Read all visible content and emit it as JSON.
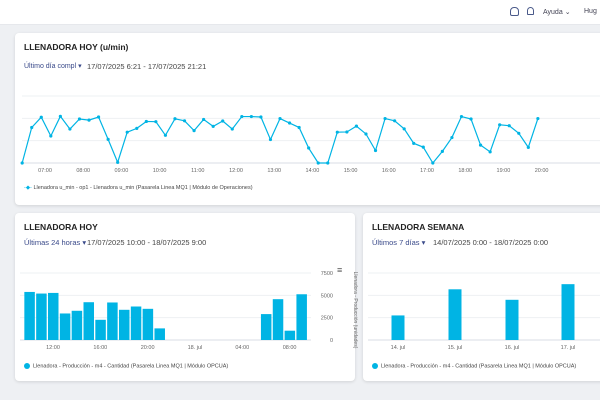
{
  "header": {
    "user": "Hug",
    "help_label": "Ayuda",
    "icons": [
      "robot-icon",
      "bell-icon"
    ]
  },
  "colors": {
    "series": "#00b4e4",
    "range": "#3a4a8a"
  },
  "card1": {
    "title": "LLENADORA HOY (u/min)",
    "range": "Último día compl",
    "dates": "17/07/2025 6:21 - 17/07/2025 21:21",
    "legend": "Llenadora u_min - op1 - Llenadora u_min (Pasarela Linea MQ1 | Módulo de Operaciones)"
  },
  "card2": {
    "title": "LLENADORA HOY",
    "range": "Últimas 24 horas",
    "dates": "17/07/2025 10:00 - 18/07/2025 9:00",
    "legend": "Llenadora - Producción - m4 - Cantidad (Pasarela Linea MQ1 | Módulo OPCUA)",
    "ylabel": "Llenadora - Producción (unidades)"
  },
  "card3": {
    "title": "LLENADORA SEMANA",
    "range": "Últimos 7 días",
    "dates": "14/07/2025 0:00 - 18/07/2025 0:00",
    "legend": "Llenadora - Producción - m4 - Cantidad (Pasarela Linea MQ1 | Módulo OPCUA)"
  },
  "chart_data": [
    {
      "type": "line",
      "x_start": "06:21",
      "x_step_minutes": 15,
      "xticks": [
        "07:00",
        "08:00",
        "09:00",
        "10:00",
        "11:00",
        "12:00",
        "13:00",
        "14:00",
        "15:00",
        "16:00",
        "17:00",
        "18:00",
        "19:00",
        "20:00"
      ],
      "ylim": [
        0,
        3
      ],
      "grid": true,
      "values": [
        0,
        1.59,
        2.05,
        1.21,
        2.09,
        1.52,
        1.97,
        1.92,
        2.06,
        1.06,
        0.03,
        1.38,
        1.55,
        1.86,
        1.85,
        1.24,
        1.98,
        1.89,
        1.45,
        1.95,
        1.64,
        1.88,
        1.52,
        2.08,
        2.08,
        2.06,
        1.05,
        1.99,
        1.79,
        1.59,
        0.67,
        0,
        0,
        1.38,
        1.39,
        1.65,
        1.3,
        0.56,
        1.99,
        1.89,
        1.53,
        0.88,
        0.71,
        0,
        0.52,
        1.14,
        2.08,
        1.97,
        0.8,
        0.5,
        1.71,
        1.67,
        1.33,
        0.7,
        1.99
      ]
    },
    {
      "type": "bar",
      "xticks": [
        "12:00",
        "16:00",
        "20:00",
        "18. jul",
        "04:00",
        "08:00"
      ],
      "yticks": [
        0,
        2500,
        5000,
        7500
      ],
      "ylim": [
        0,
        7500
      ],
      "grid": true,
      "categories": [
        "10:00",
        "11:00",
        "12:00",
        "13:00",
        "14:00",
        "15:00",
        "16:00",
        "17:00",
        "18:00",
        "19:00",
        "20:00",
        "21:00",
        "06:00",
        "07:00",
        "08:00",
        "09:00"
      ],
      "values": [
        5380,
        5200,
        5270,
        2970,
        3270,
        4230,
        2260,
        4200,
        3380,
        3750,
        3490,
        1300,
        2900,
        4570,
        1040,
        5120
      ]
    },
    {
      "type": "bar",
      "categories": [
        "14. jul",
        "15. jul",
        "16. jul",
        "17. jul"
      ],
      "ylim": [
        0,
        3
      ],
      "grid": true,
      "values": [
        1.1,
        2.27,
        1.8,
        2.5
      ]
    }
  ]
}
